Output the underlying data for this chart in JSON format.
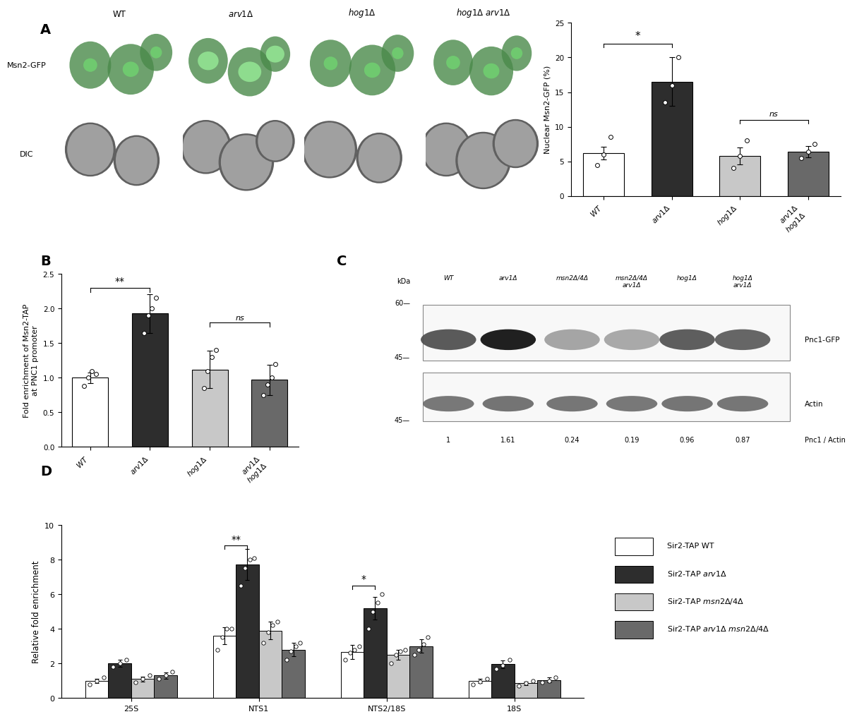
{
  "panel_A_bar": {
    "categories": [
      "WT",
      "arv1Δ",
      "hog1Δ",
      "arv1Δ hog1Δ"
    ],
    "values": [
      6.2,
      16.5,
      5.8,
      6.4
    ],
    "errors": [
      0.9,
      3.5,
      1.2,
      0.8
    ],
    "colors": [
      "#ffffff",
      "#2d2d2d",
      "#c8c8c8",
      "#696969"
    ],
    "ylabel": "Nuclear Msn2-GFP (%)",
    "ylim": [
      0,
      25
    ],
    "yticks": [
      0,
      5,
      10,
      15,
      20,
      25
    ],
    "scatter_points": {
      "WT": [
        4.5,
        6.0,
        8.5
      ],
      "arv1": [
        13.5,
        16.0,
        20.0
      ],
      "hog1": [
        4.0,
        5.8,
        8.0
      ],
      "arv1_hog1": [
        5.5,
        6.4,
        7.5
      ]
    }
  },
  "panel_B": {
    "categories": [
      "WT",
      "arv1Δ",
      "hog1Δ",
      "arv1Δ hog1Δ"
    ],
    "values": [
      1.0,
      1.93,
      1.12,
      0.97
    ],
    "errors": [
      0.08,
      0.28,
      0.27,
      0.22
    ],
    "colors": [
      "#ffffff",
      "#2d2d2d",
      "#c8c8c8",
      "#696969"
    ],
    "ylabel": "Fold enrichment of Msn2-TAP\nat PNC1 promoter",
    "ylim": [
      0,
      2.5
    ],
    "yticks": [
      0.0,
      0.5,
      1.0,
      1.5,
      2.0,
      2.5
    ],
    "scatter_points": {
      "WT": [
        0.88,
        1.0,
        1.1,
        1.05
      ],
      "arv1": [
        1.65,
        1.9,
        2.0,
        2.15
      ],
      "hog1": [
        0.85,
        1.1,
        1.3,
        1.4
      ],
      "arv1_hog1": [
        0.75,
        0.9,
        1.0,
        1.2
      ]
    }
  },
  "panel_C": {
    "lane_labels": [
      "WT",
      "arv1Δ",
      "msn2Δ/4Δ",
      "msn2Δ/4Δ\narv1Δ",
      "hog1Δ",
      "hog1Δ\narv1Δ"
    ],
    "pnc1_intensities": [
      1.0,
      1.61,
      0.24,
      0.19,
      0.96,
      0.87
    ],
    "actin_intensities": [
      1.0,
      1.1,
      1.05,
      1.0,
      1.08,
      1.05
    ],
    "ratio_labels": [
      "1",
      "1.61",
      "0.24",
      "0.19",
      "0.96",
      "0.87"
    ],
    "kda_labels": [
      "60",
      "45",
      "45"
    ],
    "protein_labels": [
      "Pnc1-GFP",
      "Actin"
    ],
    "ratio_text": "Pnc1 / Actin"
  },
  "panel_D": {
    "group_labels": [
      "25S",
      "NTS1",
      "NTS2/18S",
      "18S"
    ],
    "series_labels": [
      "Sir2-TAP WT",
      "Sir2-TAP arv1Δ",
      "Sir2-TAP msn2Δ/4Δ",
      "Sir2-TAP arv1Δ msn2Δ/4Δ"
    ],
    "colors": [
      "#ffffff",
      "#2d2d2d",
      "#c8c8c8",
      "#696969"
    ],
    "values": [
      [
        1.0,
        2.0,
        1.1,
        1.3
      ],
      [
        3.6,
        7.7,
        3.9,
        2.8
      ],
      [
        2.65,
        5.2,
        2.5,
        3.0
      ],
      [
        1.0,
        1.95,
        0.85,
        1.05
      ]
    ],
    "errors": [
      [
        0.12,
        0.2,
        0.15,
        0.18
      ],
      [
        0.5,
        0.9,
        0.5,
        0.4
      ],
      [
        0.4,
        0.65,
        0.3,
        0.4
      ],
      [
        0.12,
        0.22,
        0.1,
        0.15
      ]
    ],
    "scatter_25S": {
      "WT": [
        0.8,
        1.0,
        1.2
      ],
      "arv1": [
        1.8,
        2.0,
        2.2
      ],
      "msn2": [
        0.9,
        1.1,
        1.3
      ],
      "arv1_msn2": [
        1.1,
        1.3,
        1.5
      ]
    },
    "scatter_NTS1": {
      "WT": [
        2.8,
        3.5,
        4.0,
        4.0
      ],
      "arv1": [
        6.5,
        7.5,
        8.0,
        8.1
      ],
      "msn2": [
        3.2,
        3.8,
        4.2,
        4.4
      ],
      "arv1_msn2": [
        2.2,
        2.7,
        3.0,
        3.2
      ]
    },
    "scatter_NTS2": {
      "WT": [
        2.2,
        2.6,
        2.8,
        3.0
      ],
      "arv1": [
        4.0,
        5.0,
        5.5,
        6.0
      ],
      "msn2": [
        2.0,
        2.5,
        2.7,
        2.8
      ],
      "arv1_msn2": [
        2.5,
        2.8,
        3.1,
        3.5
      ]
    },
    "scatter_18S": {
      "WT": [
        0.8,
        0.95,
        1.1
      ],
      "arv1": [
        1.7,
        1.9,
        2.2
      ],
      "msn2": [
        0.7,
        0.85,
        1.0
      ],
      "arv1_msn2": [
        0.9,
        1.0,
        1.2
      ]
    },
    "ylabel": "Relative fold enrichment",
    "ylim": [
      0,
      10
    ],
    "yticks": [
      0,
      2,
      4,
      6,
      8,
      10
    ]
  },
  "microscopy": {
    "gfp_bg": "#1a4a1a",
    "gfp_cell": "#4a8a4a",
    "gfp_nuc_wt": "#70cc70",
    "gfp_nuc_arv1": "#90e090",
    "dic_bg": "#c8c8c8",
    "dic_outer": "#606060",
    "dic_inner": "#a0a0a0"
  }
}
